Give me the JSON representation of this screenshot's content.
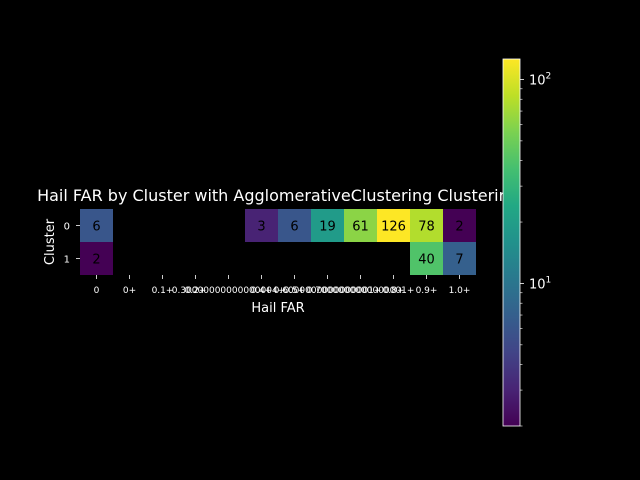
{
  "chart_data": {
    "type": "heatmap",
    "title": "Hail FAR by Cluster with AgglomerativeClustering Clustering",
    "xlabel": "Hail FAR",
    "ylabel": "Cluster",
    "x_categories": [
      "0",
      "0+",
      "0.1+",
      "0.2+",
      "0.30000000000000004+",
      "0.4+",
      "0.5+",
      "0.6000000000000001+",
      "0.7000000000000001+",
      "0.8+",
      "0.9+",
      "1.0+"
    ],
    "x_tick_labels": [
      "0",
      "0+",
      "0.1+",
      "0.2+",
      "0.30000000000000004+",
      "0.4+",
      "0.5+",
      "0.6000000000000001+",
      "0.7000000000000001+",
      "0.8+",
      "0.9+",
      "1.0+"
    ],
    "y_categories": [
      "0",
      "1"
    ],
    "values": [
      [
        6,
        null,
        null,
        null,
        null,
        3,
        6,
        19,
        61,
        126,
        78,
        2
      ],
      [
        2,
        null,
        null,
        null,
        null,
        null,
        null,
        null,
        null,
        null,
        40,
        7
      ]
    ],
    "colormap": "viridis",
    "color_scale": "log",
    "color_range": [
      2,
      126
    ],
    "colorbar_ticks": [
      {
        "value": 10,
        "base": "10",
        "exp": "1"
      },
      {
        "value": 100,
        "base": "10",
        "exp": "2"
      }
    ],
    "grid": false
  },
  "colors": {
    "background": "#000000",
    "text": "#ffffff"
  }
}
